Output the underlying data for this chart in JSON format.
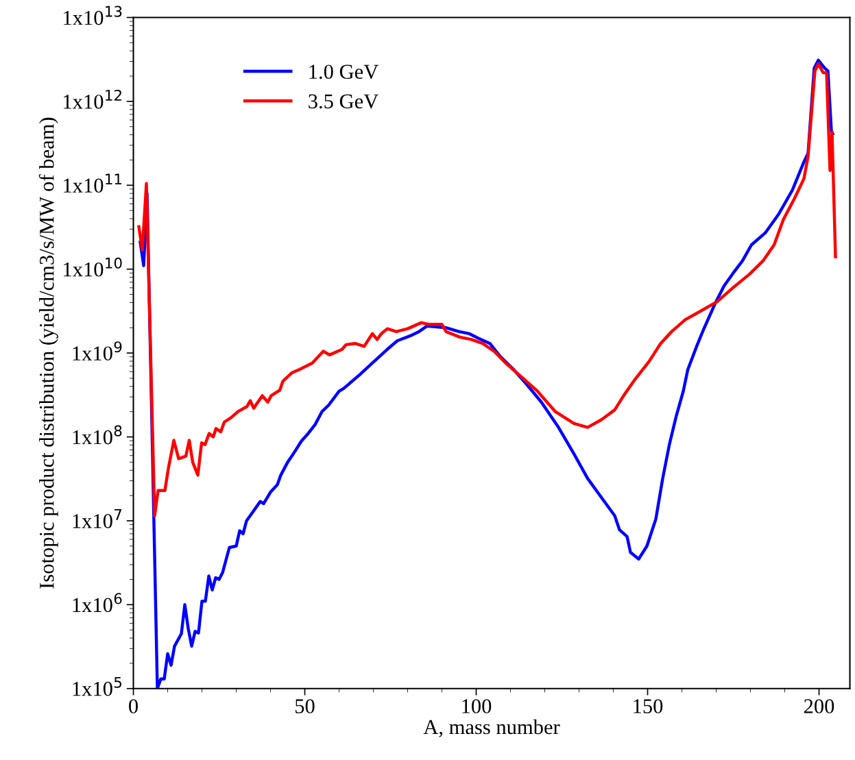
{
  "chart_data": {
    "type": "line",
    "xlabel": "A, mass number",
    "ylabel": "Isotopic product distribution (yield/cm3/s/MW of beam)",
    "log": "y",
    "legend": "top left",
    "grid": false,
    "xlim": [
      0,
      209
    ],
    "xticks": [
      0,
      50,
      100,
      150,
      200
    ],
    "ylim": [
      100000.0,
      10000000000000.0
    ],
    "yticks": [
      {
        "value": 100000.0,
        "label": "1x10$^{5}$"
      },
      {
        "value": 1000000.0,
        "label": "1x10$^{6}$"
      },
      {
        "value": 10000000.0,
        "label": "1x10$^{7}$"
      },
      {
        "value": 100000000.0,
        "label": "1x10$^{8}$"
      },
      {
        "value": 1000000000.0,
        "label": "1x10$^{9}$"
      },
      {
        "value": 10000000000.0,
        "label": "1x10$^{10}$"
      },
      {
        "value": 100000000000.0,
        "label": "1x10$^{11}$"
      },
      {
        "value": 1000000000000.0,
        "label": "1x10$^{12}$"
      },
      {
        "value": 10000000000000.0,
        "label": "1x10$^{13}$"
      }
    ],
    "series": [
      {
        "name": "1.0 GeV",
        "color": "#0000ff",
        "x": [
          2,
          3,
          4,
          7,
          8,
          9,
          10,
          11,
          12,
          14,
          15,
          16,
          17,
          18,
          19,
          20,
          21,
          22,
          23,
          24,
          25,
          26,
          28,
          30,
          31,
          32,
          33,
          35,
          37,
          38,
          40,
          42,
          43,
          45,
          47,
          49,
          51,
          53,
          55,
          57,
          60,
          61.4,
          66,
          70,
          74,
          77,
          80.7,
          83.3,
          85.7,
          91.3,
          95,
          98,
          100.6,
          104,
          107,
          111,
          115,
          119,
          124,
          128.5,
          132.5,
          136.5,
          140.4,
          141.8,
          144,
          145,
          147.4,
          149.8,
          152.4,
          154.4,
          156.4,
          158.4,
          160.4,
          161.7,
          164.3,
          166.3,
          169.7,
          172.3,
          174.9,
          177.7,
          180.3,
          184.3,
          188.2,
          192.2,
          195.6,
          196.8,
          198.6,
          199.8,
          201.6,
          202.6,
          203.6,
          204
        ],
        "values": [
          21000000000.0,
          11000000000.0,
          80000000000.0,
          100000.0,
          130000.0,
          130000.0,
          260000.0,
          190000.0,
          320000.0,
          450000.0,
          1000000.0,
          520000.0,
          320000.0,
          480000.0,
          460000.0,
          1100000.0,
          1100000.0,
          2200000.0,
          1500000.0,
          2100000.0,
          2000000.0,
          2400000.0,
          4800000.0,
          5000000.0,
          7600000.0,
          7000000.0,
          10000000.0,
          13000000.0,
          17000000.0,
          16000000.0,
          22000000.0,
          27000000.0,
          35000000.0,
          50000000.0,
          66000000.0,
          89000000.0,
          110000000.0,
          140000000.0,
          200000000.0,
          240000000.0,
          350000000.0,
          380000000.0,
          550000000.0,
          780000000.0,
          1100000000.0,
          1400000000.0,
          1600000000.0,
          1800000000.0,
          2100000000.0,
          2000000000.0,
          1800000000.0,
          1700000000.0,
          1500000000.0,
          1300000000.0,
          910000000.0,
          630000000.0,
          410000000.0,
          260000000.0,
          130000000.0,
          63000000.0,
          32000000.0,
          19000000.0,
          11500000.0,
          7800000.0,
          6500000.0,
          4200000.0,
          3500000.0,
          5000000.0,
          10500000.0,
          32000000.0,
          83000000.0,
          180000000.0,
          350000000.0,
          630000000.0,
          1200000000.0,
          1900000000.0,
          3900000000.0,
          6300000000.0,
          8900000000.0,
          12600000000.0,
          19500000000.0,
          27000000000.0,
          45000000000.0,
          87000000000.0,
          190000000000.0,
          240000000000.0,
          2500000000000.0,
          3100000000000.0,
          2500000000000.0,
          2300000000000.0,
          450000000000.0,
          410000000000.0
        ]
      },
      {
        "name": "3.5 GeV",
        "color": "#ff0000",
        "x": [
          1.6,
          2.6,
          3.8,
          6.2,
          7.2,
          9.2,
          10.2,
          11.8,
          13.2,
          15.3,
          16.3,
          17.3,
          18.8,
          19.9,
          20.9,
          22.1,
          23.3,
          24.1,
          25.5,
          26.5,
          28.5,
          30.5,
          33.1,
          34.1,
          35.1,
          37.6,
          39.2,
          40.2,
          42.7,
          43.6,
          46.2,
          48.2,
          52.2,
          55.4,
          57.2,
          60.8,
          62.1,
          64.7,
          67.3,
          69.7,
          71.1,
          72.3,
          74.1,
          76.7,
          80,
          84,
          86,
          90,
          91.2,
          95.2,
          98.6,
          101.9,
          105.2,
          108.6,
          112.5,
          117.9,
          123.1,
          128.5,
          132.5,
          136.5,
          140.4,
          143,
          146.4,
          150.4,
          153.8,
          157,
          161,
          165.7,
          170.3,
          174.9,
          179.7,
          183.7,
          186.9,
          189.6,
          192.8,
          195.6,
          196.8,
          198.8,
          199.8,
          201.2,
          202.2,
          203.2,
          203.8,
          204.8
        ],
        "values": [
          32000000000.0,
          17000000000.0,
          105000000000.0,
          11500000.0,
          23000000.0,
          23000000.0,
          42000000.0,
          91000000.0,
          55000000.0,
          59000000.0,
          91000000.0,
          50000000.0,
          35000000.0,
          85000000.0,
          81000000.0,
          110000000.0,
          100000000.0,
          126000000.0,
          115000000.0,
          150000000.0,
          170000000.0,
          200000000.0,
          230000000.0,
          270000000.0,
          220000000.0,
          310000000.0,
          260000000.0,
          310000000.0,
          360000000.0,
          460000000.0,
          580000000.0,
          630000000.0,
          760000000.0,
          1050000000.0,
          950000000.0,
          1100000000.0,
          1260000000.0,
          1300000000.0,
          1200000000.0,
          1700000000.0,
          1450000000.0,
          1700000000.0,
          1950000000.0,
          1800000000.0,
          1950000000.0,
          2300000000.0,
          2200000000.0,
          2200000000.0,
          1800000000.0,
          1550000000.0,
          1450000000.0,
          1300000000.0,
          1050000000.0,
          760000000.0,
          550000000.0,
          350000000.0,
          200000000.0,
          145000000.0,
          130000000.0,
          160000000.0,
          210000000.0,
          310000000.0,
          490000000.0,
          790000000.0,
          1300000000.0,
          1800000000.0,
          2500000000.0,
          3200000000.0,
          4100000000.0,
          6000000000.0,
          8700000000.0,
          12600000000.0,
          19500000000.0,
          39000000000.0,
          69000000000.0,
          120000000000.0,
          220000000000.0,
          2300000000000.0,
          2800000000000.0,
          2200000000000.0,
          2200000000000.0,
          150000000000.0,
          430000000000.0,
          14000000000.0
        ]
      }
    ]
  }
}
